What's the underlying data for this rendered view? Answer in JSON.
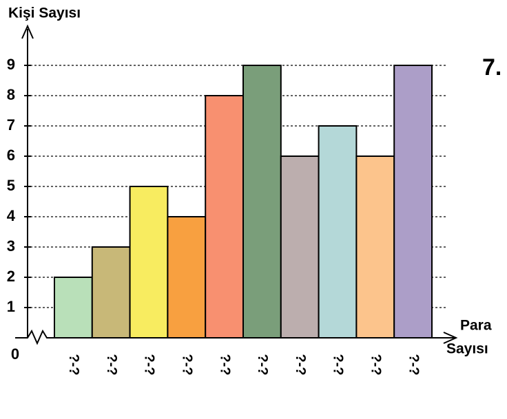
{
  "chart_data": {
    "type": "bar",
    "title": "7.",
    "y_label": "Kişi Sayısı",
    "x_label": [
      "Para",
      "Sayısı"
    ],
    "categories": [
      "?-?",
      "?-?",
      "?-?",
      "?-?",
      "?-?",
      "?-?",
      "?-?",
      "?-?",
      "?-?",
      "?-?"
    ],
    "values": [
      2,
      3,
      5,
      4,
      8,
      9,
      6,
      7,
      6,
      9
    ],
    "colors": [
      "#b9e0b9",
      "#c8b878",
      "#f8ec60",
      "#f8a040",
      "#f89070",
      "#7a9e7a",
      "#bcaeae",
      "#b4d8d8",
      "#fcc48c",
      "#ac9ec8"
    ],
    "ylim": [
      0,
      9
    ],
    "yticks": [
      0,
      1,
      2,
      3,
      4,
      5,
      6,
      7,
      8,
      9
    ],
    "grid": true
  }
}
